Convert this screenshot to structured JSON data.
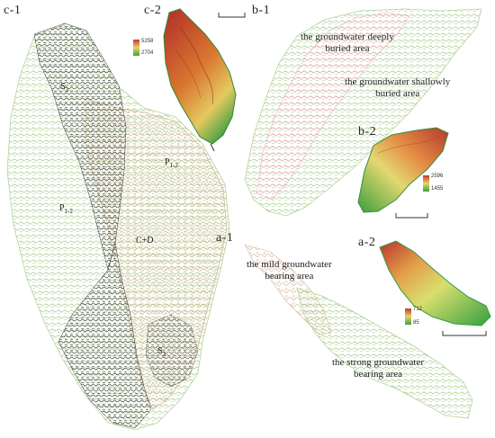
{
  "panels": {
    "c1": "c-1",
    "c2": "c-2",
    "b1": "b-1",
    "b2": "b-2",
    "a1": "a-1",
    "a2": "a-2"
  },
  "units": {
    "s3_top": "S",
    "s3_top_sub": "3",
    "p12_left": "P",
    "p12_left_sub": "1-2",
    "p12_right": "P",
    "p12_right_sub": "1-2",
    "cd": "C+D",
    "s3_bottom": "S",
    "s3_bottom_sub": "3"
  },
  "areas": {
    "deeply": [
      "the  groundwater deeply",
      "buried area"
    ],
    "shallowly": [
      "the  groundwater shallowly",
      "buried area"
    ],
    "mild": [
      "the mild groundwater",
      "bearing area"
    ],
    "strong": [
      "the strong groundwater",
      "bearing area"
    ]
  },
  "legends": {
    "c2": {
      "max": "5258",
      "min": "2704"
    },
    "b2": {
      "max": "2596",
      "min": "1455"
    },
    "a2": {
      "max": "712",
      "min": "85"
    }
  },
  "colors": {
    "black_contour": "#1a1a1a",
    "green_contour": "#9cc67a",
    "tan_contour": "#c9a27a",
    "pink_contour": "#e59aa8",
    "dem_high": "#c0392b",
    "dem_mid": "#e8d36a",
    "dem_low": "#3ca23c"
  }
}
